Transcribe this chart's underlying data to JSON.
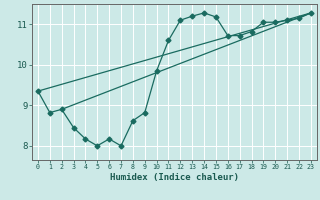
{
  "xlabel": "Humidex (Indice chaleur)",
  "bg_color": "#cce9e7",
  "grid_color": "#ffffff",
  "line_color": "#1a6b60",
  "xlim": [
    -0.5,
    23.5
  ],
  "ylim": [
    7.65,
    11.5
  ],
  "x_ticks": [
    0,
    1,
    2,
    3,
    4,
    5,
    6,
    7,
    8,
    9,
    10,
    11,
    12,
    13,
    14,
    15,
    16,
    17,
    18,
    19,
    20,
    21,
    22,
    23
  ],
  "y_ticks": [
    8,
    9,
    10,
    11
  ],
  "line1_x": [
    0,
    1,
    2,
    3,
    4,
    5,
    6,
    7,
    8,
    9,
    10,
    11,
    12,
    13,
    14,
    15,
    16,
    17,
    18,
    19,
    20,
    21,
    22,
    23
  ],
  "line1_y": [
    9.35,
    8.82,
    8.9,
    8.45,
    8.17,
    8.0,
    8.17,
    8.0,
    8.62,
    8.82,
    9.85,
    10.6,
    11.1,
    11.2,
    11.28,
    11.18,
    10.72,
    10.72,
    10.82,
    11.05,
    11.05,
    11.1,
    11.15,
    11.28
  ],
  "line2_x": [
    0,
    23
  ],
  "line2_y": [
    9.35,
    11.28
  ],
  "line3_x": [
    2,
    23
  ],
  "line3_y": [
    8.9,
    11.28
  ],
  "marker_size": 2.5,
  "lw": 0.9
}
